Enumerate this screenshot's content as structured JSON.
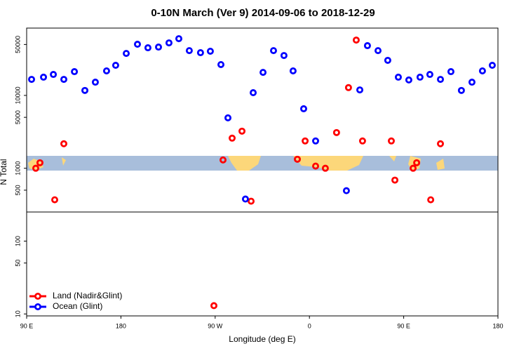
{
  "chart_data": {
    "type": "scatter",
    "title": "0-10N March (Ver 9)   2014-09-06 to 2018-12-29",
    "x_label": "Longitude (deg E)",
    "y_label": "N Total",
    "log_y": true,
    "legend": "bottom-left",
    "xlim": [
      90,
      540
    ],
    "ylim": [
      9.4,
      84000
    ],
    "xticks": [
      {
        "value": 90,
        "label": "90 E"
      },
      {
        "value": 180,
        "label": "180"
      },
      {
        "value": 270,
        "label": "90 W"
      },
      {
        "value": 360,
        "label": "0"
      },
      {
        "value": 450,
        "label": "90 E"
      },
      {
        "value": 540,
        "label": "180"
      }
    ],
    "yticks": [
      10,
      50,
      100,
      500,
      1000,
      5000,
      10000,
      50000
    ],
    "series": [
      {
        "name": "Land (Nadir&Glint)",
        "color": "#ff0000",
        "x": [
          98.7,
          102.7,
          116.8,
          125.5,
          268.8,
          277.5,
          286.2,
          295.6,
          304.3,
          348.5,
          355.9,
          365.9,
          375.2,
          385.9,
          397.3,
          404.7,
          410.7,
          438.2,
          441.6,
          459.0,
          462.4,
          475.8,
          485.1
        ],
        "values": [
          1000,
          1190,
          369,
          2170,
          13,
          1300,
          2590,
          3230,
          353,
          1330,
          2370,
          1070,
          1000,
          3090,
          12800,
          57500,
          2370,
          2370,
          687,
          1000,
          1190,
          369,
          2170
        ]
      },
      {
        "name": "Ocean (Glint)",
        "color": "#0000ff",
        "x": [
          94.7,
          106.1,
          115.5,
          125.5,
          135.6,
          145.6,
          155.6,
          166.3,
          175.0,
          185.1,
          195.8,
          205.8,
          215.9,
          225.9,
          235.3,
          245.3,
          256.0,
          265.4,
          275.5,
          282.2,
          298.9,
          306.3,
          315.7,
          325.7,
          335.7,
          344.4,
          354.5,
          365.9,
          395.3,
          408.1,
          415.4,
          425.5,
          434.8,
          444.9,
          454.9,
          465.6,
          475.0,
          485.1,
          495.1,
          505.1,
          515.2,
          525.2,
          534.6
        ],
        "values": [
          16600,
          17800,
          19400,
          16600,
          21200,
          11700,
          15200,
          21700,
          25900,
          37700,
          50400,
          45100,
          46100,
          52600,
          60100,
          41200,
          38600,
          40400,
          26500,
          4920,
          378,
          10900,
          20700,
          41200,
          35300,
          21700,
          6560,
          2370,
          492,
          11900,
          48200,
          41200,
          30300,
          17800,
          16300,
          17800,
          19400,
          16600,
          21200,
          11700,
          15200,
          21700,
          25900
        ]
      }
    ]
  }
}
